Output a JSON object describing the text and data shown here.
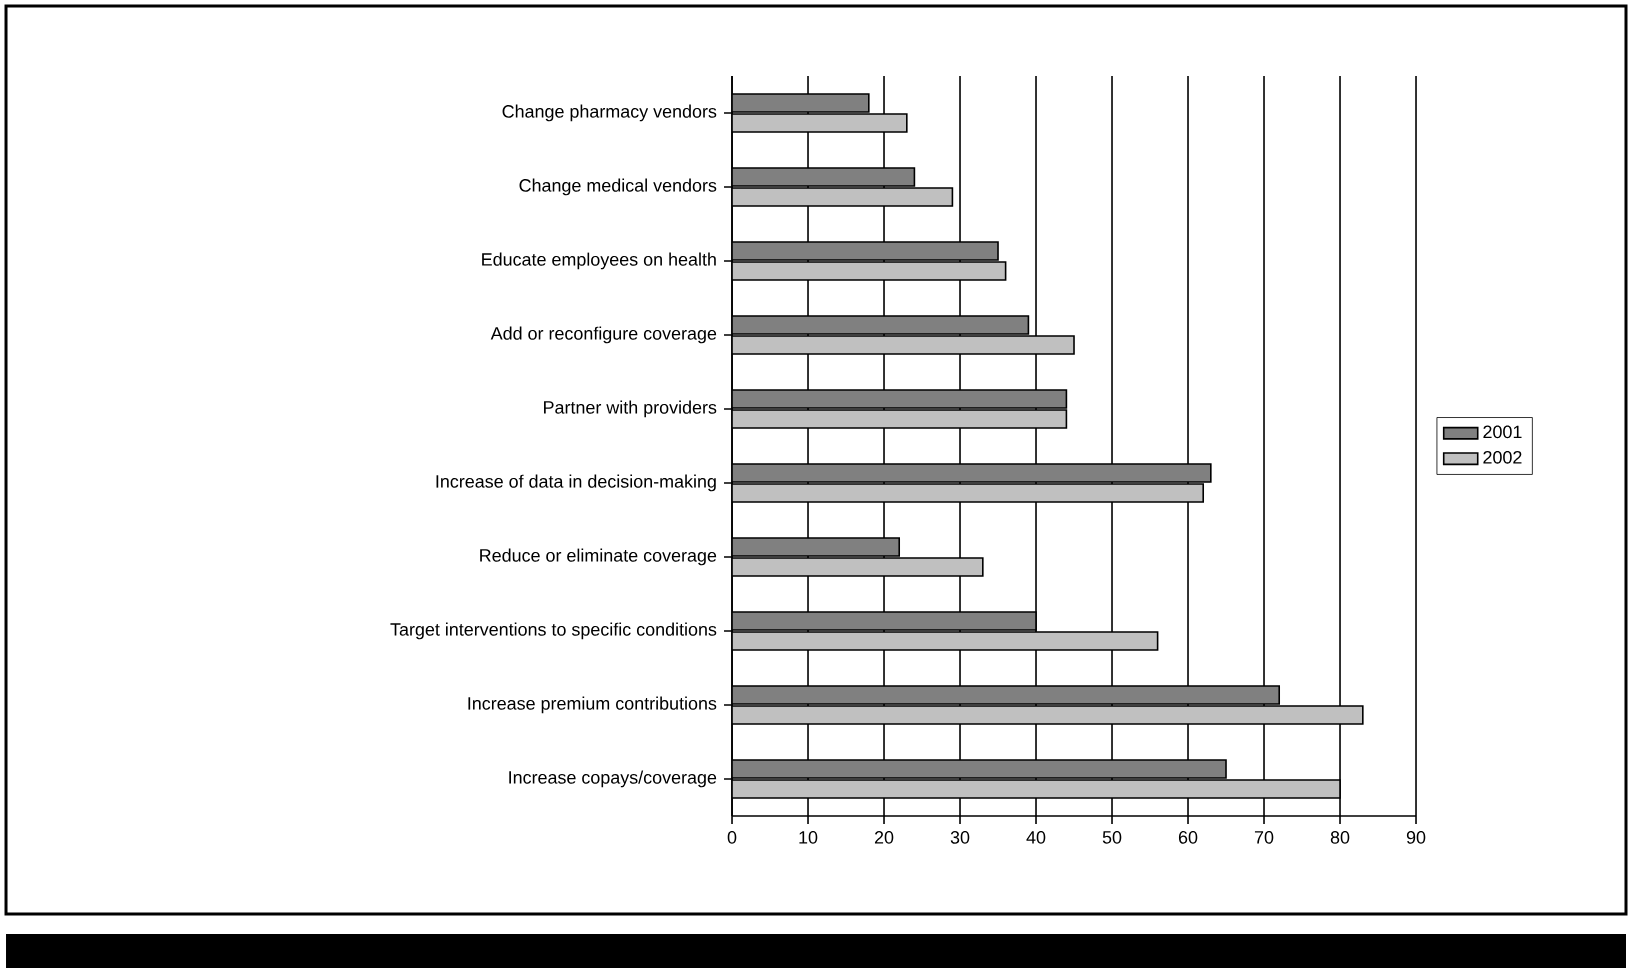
{
  "chart_data": {
    "type": "bar",
    "orientation": "horizontal",
    "categories": [
      "Change pharmacy vendors",
      "Change medical vendors",
      "Educate employees on health",
      "Add or reconfigure coverage",
      "Partner with providers",
      "Increase of data in decision-making",
      "Reduce or eliminate coverage",
      "Target interventions to specific conditions",
      "Increase premium contributions",
      "Increase copays/coverage"
    ],
    "series": [
      {
        "name": "2001",
        "color": "#808080",
        "values": [
          18,
          24,
          35,
          39,
          44,
          63,
          22,
          40,
          72,
          65
        ]
      },
      {
        "name": "2002",
        "color": "#c0c0c0",
        "values": [
          23,
          29,
          36,
          45,
          44,
          62,
          33,
          56,
          83,
          80
        ]
      }
    ],
    "xlim": [
      0,
      90
    ],
    "xticks": [
      0,
      10,
      20,
      30,
      40,
      50,
      60,
      70,
      80,
      90
    ],
    "grid": "x",
    "legend": "right"
  }
}
